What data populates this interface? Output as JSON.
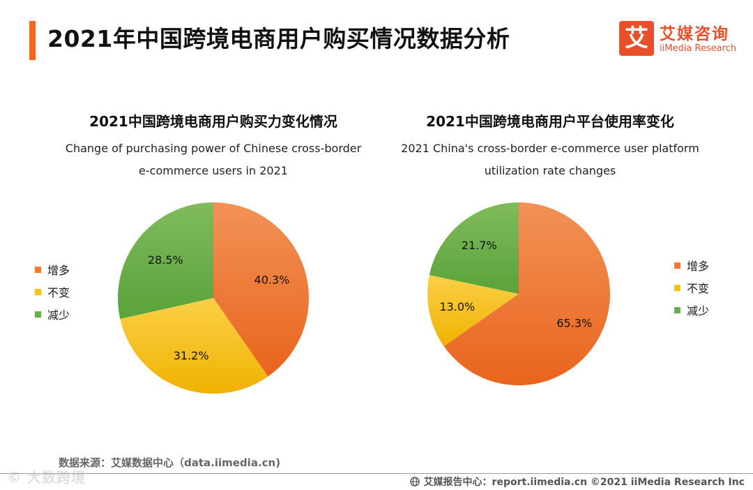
{
  "header": {
    "title": "2021年中国跨境电商用户购买情况数据分析",
    "logo_mark": "艾",
    "logo_cn": "艾媒咨询",
    "logo_en": "iiMedia Research"
  },
  "colors": {
    "accent": "#f26522",
    "increase": "#ee7b30",
    "unchanged": "#f9c214",
    "decrease": "#6ab04a"
  },
  "chart_data": [
    {
      "type": "pie",
      "title": "2021中国跨境电商用户购买力变化情况",
      "subtitle_line1": "Change of purchasing power of Chinese cross-border",
      "subtitle_line2": "e-commerce users in 2021",
      "categories": [
        "增多",
        "不变",
        "减少"
      ],
      "values": [
        40.3,
        31.2,
        28.5
      ],
      "labels": [
        "40.3%",
        "31.2%",
        "28.5%"
      ],
      "legend_position": "left"
    },
    {
      "type": "pie",
      "title": "2021中国跨境电商用户平台使用率变化",
      "subtitle_line1": "2021 China's cross-border e-commerce user platform",
      "subtitle_line2": "utilization rate changes",
      "categories": [
        "增多",
        "不变",
        "减少"
      ],
      "values": [
        65.3,
        13.0,
        21.7
      ],
      "labels": [
        "65.3%",
        "13.0%",
        "21.7%"
      ],
      "legend_position": "right"
    }
  ],
  "legend_left": [
    "增多",
    "不变",
    "减少"
  ],
  "legend_right": [
    "增多",
    "不变",
    "减少"
  ],
  "source": "数据来源：艾媒数据中心（data.iimedia.cn)",
  "watermark": "© 大数跨境",
  "footer": "艾媒报告中心：report.iimedia.cn   ©2021  iiMedia Research  Inc"
}
